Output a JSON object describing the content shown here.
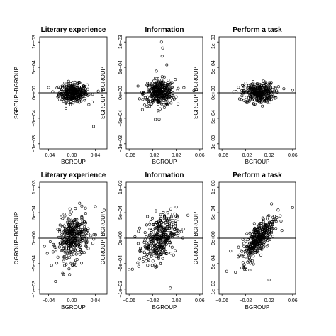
{
  "chart_data": [
    {
      "type": "scatter",
      "title": "Literary experience",
      "xlabel": "BGROUP",
      "ylabel": "SGROUP−BGROUP",
      "xlim": [
        -0.055,
        0.06
      ],
      "ylim": [
        -0.0011,
        0.0011
      ],
      "x_ticks": [
        -0.04,
        0.0,
        0.04
      ],
      "x_tick_labels": [
        "−0.04",
        "0.00",
        "0.04"
      ],
      "y_ticks": [
        -0.001,
        -0.0005,
        0.0,
        0.0005,
        0.001
      ],
      "y_tick_labels": [
        "−1e−03",
        "−5e−04",
        "0e+00",
        "5e−04",
        "1e−03"
      ],
      "reference_line_y": 0,
      "cloud": {
        "n": 320,
        "x_center": 0.002,
        "x_sd": 0.012,
        "y_sd": 9e-05,
        "slope": 0.0
      },
      "outliers": [
        [
          0.037,
          -0.00066
        ],
        [
          0.045,
          3e-05
        ],
        [
          0.052,
          4e-05
        ]
      ]
    },
    {
      "type": "scatter",
      "title": "Information",
      "xlabel": "BGROUP",
      "ylabel": "SGROUP−BGROUP",
      "xlim": [
        -0.065,
        0.065
      ],
      "ylim": [
        -0.0011,
        0.0011
      ],
      "x_ticks": [
        -0.06,
        -0.02,
        0.02,
        0.06
      ],
      "x_tick_labels": [
        "−0.06",
        "−0.02",
        "0.02",
        "0.06"
      ],
      "y_ticks": [
        -0.001,
        -0.0005,
        0.0,
        0.0005,
        0.001
      ],
      "y_tick_labels": [
        "−1e−03",
        "−5e−04",
        "0e+00",
        "5e−04",
        "1e−03"
      ],
      "reference_line_y": 0,
      "cloud": {
        "n": 340,
        "x_center": -0.008,
        "x_sd": 0.013,
        "y_sd": 0.00013,
        "slope": 0.0
      },
      "outliers": [
        [
          -0.005,
          0.001
        ],
        [
          -0.003,
          0.00088
        ],
        [
          -0.004,
          0.00072
        ],
        [
          -0.009,
          -0.00052
        ],
        [
          0.004,
          0.00055
        ],
        [
          -0.011,
          -0.00035
        ],
        [
          0.05,
          4e-05
        ]
      ]
    },
    {
      "type": "scatter",
      "title": "Perform a task",
      "xlabel": "BGROUP",
      "ylabel": "SGROUP−BGROUP",
      "xlim": [
        -0.065,
        0.065
      ],
      "ylim": [
        -0.0011,
        0.0011
      ],
      "x_ticks": [
        -0.06,
        -0.02,
        0.02,
        0.06
      ],
      "x_tick_labels": [
        "−0.06",
        "−0.02",
        "0.02",
        "0.06"
      ],
      "y_ticks": [
        -0.001,
        -0.0005,
        0.0,
        0.0005,
        0.001
      ],
      "y_tick_labels": [
        "−1e−03",
        "−5e−04",
        "0e+00",
        "5e−04",
        "1e−03"
      ],
      "reference_line_y": 0,
      "cloud": {
        "n": 320,
        "x_center": 0.002,
        "x_sd": 0.013,
        "y_sd": 0.0001,
        "slope": 0.0
      },
      "outliers": [
        [
          0.06,
          5e-05
        ],
        [
          0.045,
          8e-05
        ],
        [
          -0.04,
          2e-05
        ]
      ]
    },
    {
      "type": "scatter",
      "title": "Literary experience",
      "xlabel": "BGROUP",
      "ylabel": "CGROUP−BGROUP",
      "xlim": [
        -0.055,
        0.06
      ],
      "ylim": [
        -0.0011,
        0.0011
      ],
      "x_ticks": [
        -0.04,
        0.0,
        0.04
      ],
      "x_tick_labels": [
        "−0.04",
        "0.00",
        "0.04"
      ],
      "y_ticks": [
        -0.001,
        -0.0005,
        0.0,
        0.0005,
        0.001
      ],
      "y_tick_labels": [
        "−1e−03",
        "−5e−04",
        "0e+00",
        "5e−04",
        "1e−03"
      ],
      "reference_line_y": 0,
      "cloud": {
        "n": 360,
        "x_center": 0.002,
        "x_sd": 0.013,
        "y_sd": 0.00022,
        "slope": 0.004
      },
      "outliers": [
        [
          -0.028,
          -0.00085
        ],
        [
          0.055,
          0.00055
        ],
        [
          0.04,
          0.00062
        ],
        [
          -0.042,
          -0.0003
        ]
      ]
    },
    {
      "type": "scatter",
      "title": "Information",
      "xlabel": "BGROUP",
      "ylabel": "CGROUP−BGROUP",
      "xlim": [
        -0.065,
        0.065
      ],
      "ylim": [
        -0.0011,
        0.0011
      ],
      "x_ticks": [
        -0.06,
        -0.02,
        0.02,
        0.06
      ],
      "x_tick_labels": [
        "−0.06",
        "−0.02",
        "0.02",
        "0.06"
      ],
      "y_ticks": [
        -0.001,
        -0.0005,
        0.0,
        0.0005,
        0.001
      ],
      "y_tick_labels": [
        "−1e−03",
        "−5e−04",
        "0e+00",
        "5e−04",
        "1e−03"
      ],
      "reference_line_y": 0,
      "cloud": {
        "n": 360,
        "x_center": -0.008,
        "x_sd": 0.014,
        "y_sd": 0.00022,
        "slope": 0.006
      },
      "outliers": [
        [
          -0.06,
          -0.00062
        ],
        [
          0.04,
          0.00045
        ],
        [
          0.01,
          -0.00098
        ]
      ]
    },
    {
      "type": "scatter",
      "title": "Perform a task",
      "xlabel": "BGROUP",
      "ylabel": "CGROUP−BGROUP",
      "xlim": [
        -0.065,
        0.065
      ],
      "ylim": [
        -0.0011,
        0.0011
      ],
      "x_ticks": [
        -0.06,
        -0.02,
        0.02,
        0.06
      ],
      "x_tick_labels": [
        "−0.06",
        "−0.02",
        "0.02",
        "0.06"
      ],
      "y_ticks": [
        -0.001,
        -0.0005,
        0.0,
        0.0005,
        0.001
      ],
      "y_tick_labels": [
        "−1e−03",
        "−5e−04",
        "0e+00",
        "5e−04",
        "1e−03"
      ],
      "reference_line_y": 0,
      "cloud": {
        "n": 360,
        "x_center": 0.002,
        "x_sd": 0.014,
        "y_sd": 0.00015,
        "slope": 0.012
      },
      "outliers": [
        [
          0.06,
          0.0006
        ],
        [
          -0.052,
          -0.00065
        ],
        [
          0.02,
          -0.00082
        ]
      ]
    }
  ]
}
